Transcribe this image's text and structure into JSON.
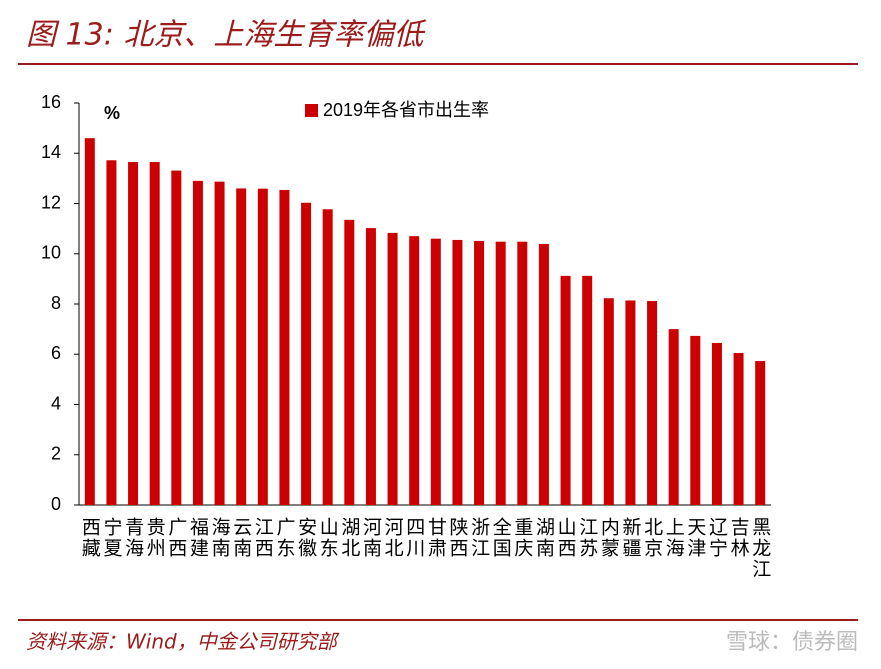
{
  "chart_data": {
    "type": "bar",
    "title": "图 13: 北京、上海生育率偏低",
    "unit_label": "%",
    "source": "资料来源：Wind，中金公司研究部",
    "watermark": "雪球：债券圈",
    "categories": [
      "西藏",
      "宁夏",
      "青海",
      "贵州",
      "广西",
      "福建",
      "海南",
      "云南",
      "江西",
      "广东",
      "安徽",
      "山东",
      "湖北",
      "河南",
      "河北",
      "四川",
      "甘肃",
      "陕西",
      "浙江",
      "全国",
      "重庆",
      "湖南",
      "山西",
      "江苏",
      "内蒙",
      "新疆",
      "北京",
      "上海",
      "天津",
      "辽宁",
      "吉林",
      "黑龙江"
    ],
    "series": [
      {
        "name": "2019年各省市出生率",
        "color": "#cc0000",
        "values": [
          14.6,
          13.72,
          13.65,
          13.65,
          13.31,
          12.9,
          12.87,
          12.6,
          12.59,
          12.54,
          12.03,
          11.77,
          11.35,
          11.02,
          10.83,
          10.7,
          10.6,
          10.55,
          10.51,
          10.48,
          10.48,
          10.39,
          9.12,
          9.12,
          8.23,
          8.14,
          8.12,
          7.0,
          6.73,
          6.45,
          6.05,
          5.73
        ]
      }
    ],
    "ylim": [
      0,
      16
    ],
    "yticks": [
      0,
      2,
      4,
      6,
      8,
      10,
      12,
      14,
      16
    ],
    "grid": false
  }
}
